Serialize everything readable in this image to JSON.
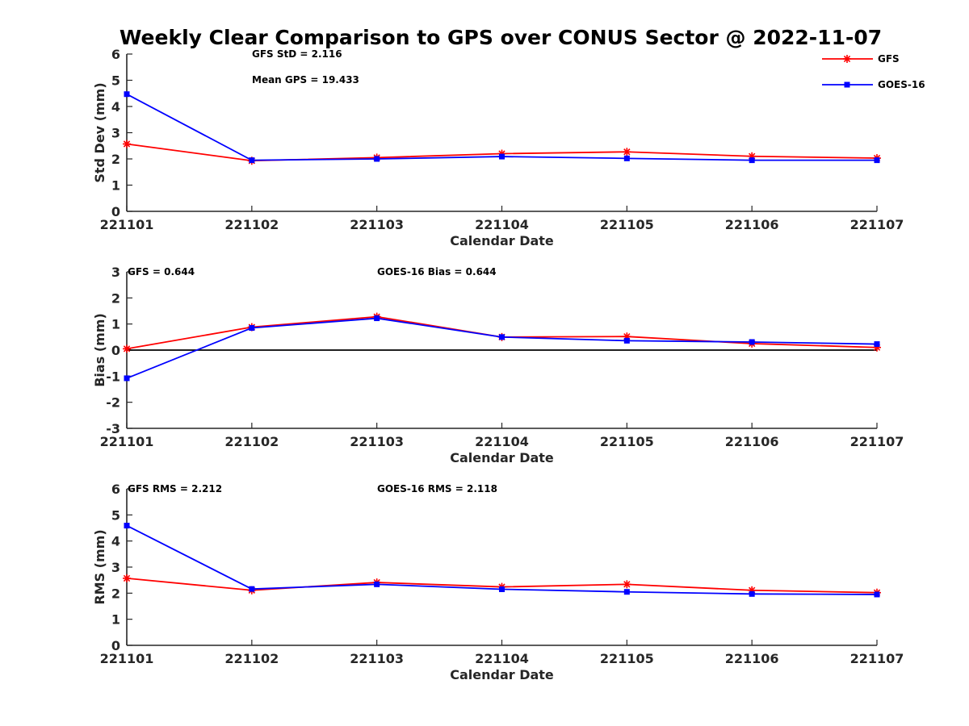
{
  "title": "Weekly Clear Comparison to GPS over CONUS Sector @ 2022-11-07",
  "legend": {
    "position": "top-right",
    "entries": [
      {
        "label": "GFS",
        "color": "#ff0000",
        "marker": "asterisk"
      },
      {
        "label": "GOES-16",
        "color": "#0000ff",
        "marker": "square"
      }
    ]
  },
  "chart_data": [
    {
      "type": "line",
      "xlabel": "Calendar Date",
      "ylabel": "Std Dev (mm)",
      "ylim": [
        0,
        6
      ],
      "yticks": [
        0,
        1,
        2,
        3,
        4,
        5,
        6
      ],
      "categories": [
        "221101",
        "221102",
        "221103",
        "221104",
        "221105",
        "221106",
        "221107"
      ],
      "zero_line": false,
      "annotations": [
        "GFS StD = 2.116",
        "Mean GPS = 19.433"
      ],
      "series": [
        {
          "name": "GFS",
          "color": "#ff0000",
          "marker": "asterisk",
          "values": [
            2.57,
            1.93,
            2.05,
            2.2,
            2.27,
            2.1,
            2.03
          ]
        },
        {
          "name": "GOES-16",
          "color": "#0000ff",
          "marker": "square",
          "values": [
            4.47,
            1.95,
            2.0,
            2.09,
            2.02,
            1.95,
            1.95
          ]
        }
      ]
    },
    {
      "type": "line",
      "xlabel": "Calendar Date",
      "ylabel": "Bias (mm)",
      "ylim": [
        -3,
        3
      ],
      "yticks": [
        -3,
        -2,
        -1,
        0,
        1,
        2,
        3
      ],
      "categories": [
        "221101",
        "221102",
        "221103",
        "221104",
        "221105",
        "221106",
        "221107"
      ],
      "zero_line": true,
      "annotations": [
        "GFS = 0.644",
        "GOES-16 Bias  = 0.644"
      ],
      "series": [
        {
          "name": "GFS",
          "color": "#ff0000",
          "marker": "asterisk",
          "values": [
            0.05,
            0.88,
            1.28,
            0.5,
            0.52,
            0.25,
            0.1
          ]
        },
        {
          "name": "GOES-16",
          "color": "#0000ff",
          "marker": "square",
          "values": [
            -1.08,
            0.85,
            1.22,
            0.5,
            0.36,
            0.31,
            0.23
          ]
        }
      ]
    },
    {
      "type": "line",
      "xlabel": "Calendar Date",
      "ylabel": "RMS (mm)",
      "ylim": [
        0,
        6
      ],
      "yticks": [
        0,
        1,
        2,
        3,
        4,
        5,
        6
      ],
      "categories": [
        "221101",
        "221102",
        "221103",
        "221104",
        "221105",
        "221106",
        "221107"
      ],
      "zero_line": false,
      "annotations": [
        "GFS RMS = 2.212",
        "GOES-16 RMS = 2.118"
      ],
      "series": [
        {
          "name": "GFS",
          "color": "#ff0000",
          "marker": "asterisk",
          "values": [
            2.57,
            2.11,
            2.41,
            2.24,
            2.34,
            2.11,
            2.02
          ]
        },
        {
          "name": "GOES-16",
          "color": "#0000ff",
          "marker": "square",
          "values": [
            4.59,
            2.16,
            2.34,
            2.15,
            2.05,
            1.97,
            1.95
          ]
        }
      ]
    }
  ]
}
